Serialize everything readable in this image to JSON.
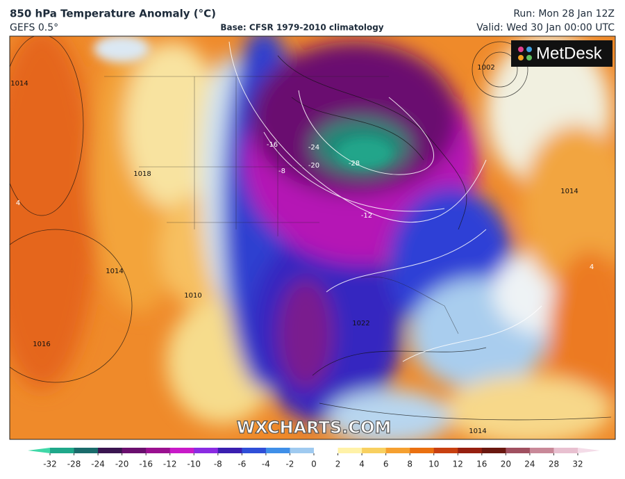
{
  "header": {
    "title": "850 hPa Temperature Anomaly (°C)",
    "model": "GEFS 0.5°",
    "base": "Base: CFSR 1979-2010 climatology",
    "run": "Run: Mon 28 Jan 12Z",
    "valid": "Valid: Wed 30 Jan 00:00 UTC"
  },
  "logo": "MetDesk",
  "watermark": "WXCHARTS.COM",
  "map": {
    "contour_labels": [
      "-28",
      "-24",
      "-20",
      "-16",
      "-12",
      "-8",
      "1014",
      "1018",
      "1022",
      "1010",
      "1014",
      "1016",
      "1014",
      "1002",
      "1014",
      "4",
      "4"
    ]
  },
  "colorbar": {
    "ticks": [
      -32,
      -28,
      -24,
      -20,
      -16,
      -12,
      -10,
      -8,
      -6,
      -4,
      -2,
      0,
      2,
      4,
      6,
      8,
      10,
      12,
      16,
      20,
      24,
      28,
      32
    ],
    "colors": [
      "#1fa88a",
      "#1a6b6b",
      "#3a1550",
      "#6a0f6e",
      "#9a1090",
      "#c81ac8",
      "#8a2be2",
      "#3a1fb0",
      "#2f4fd8",
      "#3f8fe8",
      "#9fcaf0",
      "#ffffff",
      "#fff2a8",
      "#f8d060",
      "#f5a030",
      "#ea7010",
      "#c84010",
      "#962010",
      "#6a1810",
      "#a05060",
      "#c88898",
      "#e8c0d0"
    ]
  }
}
